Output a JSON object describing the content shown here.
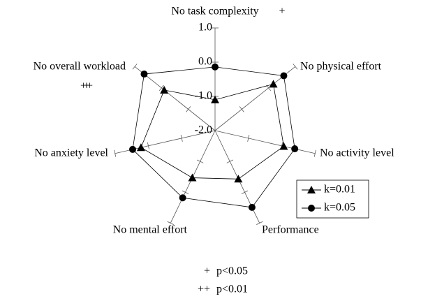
{
  "chart_data": {
    "type": "radar",
    "categories": [
      "No task complexity",
      "No physical effort",
      "No activity level",
      "Performance",
      "No mental effort",
      "No anxiety level",
      "No overall workload"
    ],
    "ylim": [
      -2,
      1
    ],
    "yticks": [
      {
        "value": -2,
        "label": "-2.0"
      },
      {
        "value": -1,
        "label": "-1.0"
      },
      {
        "value": 0,
        "label": "0.0"
      },
      {
        "value": 1,
        "label": "1.0"
      }
    ],
    "series": [
      {
        "name": "k=0.01",
        "color": "#000000",
        "marker": "triangle",
        "values": [
          -1.1,
          0.18,
          0.06,
          -0.43,
          -0.47,
          0.22,
          -0.1
        ]
      },
      {
        "name": "k=0.05",
        "color": "#000000",
        "marker": "circle",
        "values": [
          -0.14,
          0.57,
          0.39,
          0.49,
          0.18,
          0.47,
          0.65
        ]
      }
    ],
    "annotations": [
      {
        "category": "No task complexity",
        "text": "+"
      },
      {
        "category": "Performance",
        "text": "+"
      },
      {
        "category": "No mental effort",
        "text": "++"
      },
      {
        "category": "No overall workload",
        "text": "+"
      }
    ],
    "notes": [
      {
        "symbol": "+",
        "text": "p<0.05"
      },
      {
        "symbol": "++",
        "text": "p<0.01"
      }
    ],
    "legend": "lower right"
  }
}
